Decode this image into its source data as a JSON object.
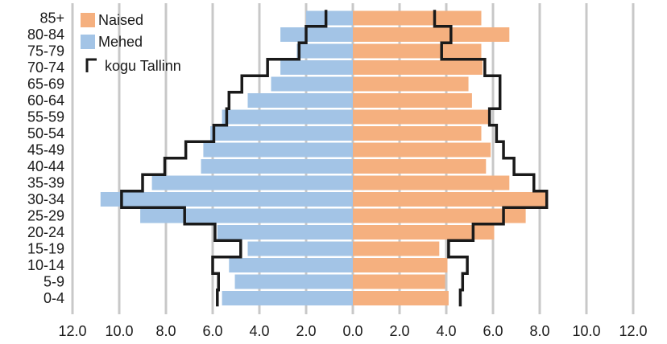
{
  "chart_data": {
    "type": "bar",
    "orientation": "horizontal",
    "layout": "population-pyramid",
    "categories": [
      "0-4",
      "5-9",
      "10-14",
      "15-19",
      "20-24",
      "25-29",
      "30-34",
      "35-39",
      "40-44",
      "45-49",
      "50-54",
      "55-59",
      "60-64",
      "65-69",
      "70-74",
      "75-79",
      "80-84",
      "85+"
    ],
    "series": [
      {
        "name": "Naised",
        "side": "right",
        "color": "#f5b07f",
        "values": [
          4.1,
          3.95,
          4.05,
          3.7,
          6.05,
          7.4,
          8.3,
          6.7,
          5.7,
          5.9,
          5.5,
          5.8,
          5.1,
          4.95,
          5.55,
          5.5,
          6.7,
          5.5
        ]
      },
      {
        "name": "Mehed",
        "side": "left",
        "color": "#a3c4e6",
        "values": [
          5.6,
          5.05,
          5.3,
          4.5,
          5.8,
          9.1,
          10.8,
          8.6,
          6.5,
          6.4,
          6.1,
          5.6,
          4.5,
          3.5,
          3.1,
          2.4,
          3.1,
          2.0
        ]
      },
      {
        "name": "kogu Tallinn",
        "type": "step-outline",
        "color": "#1a1a1a",
        "female": [
          4.6,
          4.7,
          4.9,
          4.1,
          5.15,
          6.45,
          8.3,
          7.75,
          6.9,
          6.45,
          6.15,
          5.85,
          6.3,
          6.3,
          5.65,
          3.8,
          4.2,
          3.5
        ],
        "male": [
          5.8,
          5.75,
          6.0,
          4.8,
          5.9,
          7.2,
          9.9,
          9.0,
          8.05,
          7.15,
          5.95,
          5.4,
          5.3,
          4.75,
          3.65,
          2.3,
          2.0,
          1.15
        ]
      }
    ],
    "x_tick_labels": [
      "12.0",
      "10.0",
      "8.0",
      "6.0",
      "4.0",
      "2.0",
      "0.0",
      "2.0",
      "4.0",
      "6.0",
      "8.0",
      "10.0",
      "12.0"
    ],
    "xlim": [
      -12,
      12
    ],
    "title": "",
    "xlabel": "",
    "ylabel": "",
    "grid": "vertical",
    "legend": "top-left"
  }
}
